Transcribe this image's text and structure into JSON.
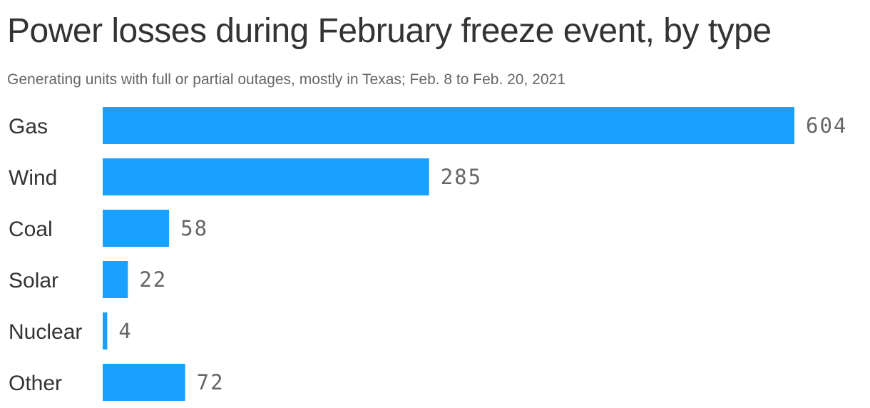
{
  "header": {
    "title": "Power losses during February freeze event, by type",
    "subtitle": "Generating units with full or partial outages, mostly in Texas; Feb. 8 to Feb. 20, 2021"
  },
  "chart_data": {
    "type": "bar",
    "orientation": "horizontal",
    "title": "Power losses during February freeze event, by type",
    "subtitle": "Generating units with full or partial outages, mostly in Texas; Feb. 8 to Feb. 20, 2021",
    "categories": [
      "Gas",
      "Wind",
      "Coal",
      "Solar",
      "Nuclear",
      "Other"
    ],
    "values": [
      604,
      285,
      58,
      22,
      4,
      72
    ],
    "xlabel": "",
    "ylabel": "",
    "xlim": [
      0,
      604
    ],
    "grid": false,
    "legend": "none",
    "data_labels": true,
    "bar_color": "#18a1ff"
  }
}
